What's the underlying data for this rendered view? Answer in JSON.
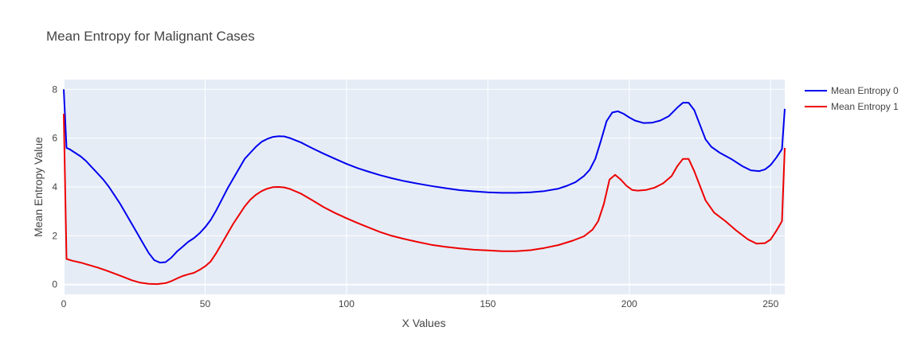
{
  "chart_data": {
    "type": "line",
    "title": "Mean Entropy for Malignant Cases",
    "xlabel": "X Values",
    "ylabel": "Mean Entropy Value",
    "xlim": [
      0,
      255
    ],
    "ylim": [
      -0.4,
      8.4
    ],
    "xticks": [
      0,
      50,
      100,
      150,
      200,
      250
    ],
    "yticks": [
      0,
      2,
      4,
      6,
      8
    ],
    "grid": true,
    "legend_position": "top-right",
    "plot_background": "#e5ecf6",
    "series": [
      {
        "name": "Mean Entropy 0",
        "color": "#0000ee",
        "points": [
          [
            0,
            8.0
          ],
          [
            1,
            5.6
          ],
          [
            2,
            5.55
          ],
          [
            4,
            5.4
          ],
          [
            6,
            5.25
          ],
          [
            8,
            5.05
          ],
          [
            10,
            4.8
          ],
          [
            12,
            4.55
          ],
          [
            14,
            4.3
          ],
          [
            16,
            4.0
          ],
          [
            18,
            3.65
          ],
          [
            20,
            3.3
          ],
          [
            22,
            2.9
          ],
          [
            24,
            2.5
          ],
          [
            26,
            2.1
          ],
          [
            28,
            1.7
          ],
          [
            30,
            1.3
          ],
          [
            32,
            1.0
          ],
          [
            34,
            0.9
          ],
          [
            36,
            0.92
          ],
          [
            38,
            1.1
          ],
          [
            40,
            1.35
          ],
          [
            42,
            1.55
          ],
          [
            44,
            1.75
          ],
          [
            46,
            1.9
          ],
          [
            48,
            2.1
          ],
          [
            50,
            2.35
          ],
          [
            52,
            2.65
          ],
          [
            54,
            3.05
          ],
          [
            56,
            3.5
          ],
          [
            58,
            3.95
          ],
          [
            60,
            4.35
          ],
          [
            62,
            4.75
          ],
          [
            64,
            5.15
          ],
          [
            66,
            5.4
          ],
          [
            68,
            5.65
          ],
          [
            70,
            5.85
          ],
          [
            72,
            5.97
          ],
          [
            74,
            6.05
          ],
          [
            76,
            6.08
          ],
          [
            78,
            6.07
          ],
          [
            80,
            6.0
          ],
          [
            84,
            5.82
          ],
          [
            88,
            5.58
          ],
          [
            92,
            5.36
          ],
          [
            96,
            5.15
          ],
          [
            100,
            4.95
          ],
          [
            104,
            4.77
          ],
          [
            108,
            4.62
          ],
          [
            112,
            4.48
          ],
          [
            116,
            4.36
          ],
          [
            120,
            4.25
          ],
          [
            125,
            4.14
          ],
          [
            130,
            4.04
          ],
          [
            135,
            3.95
          ],
          [
            140,
            3.87
          ],
          [
            145,
            3.82
          ],
          [
            150,
            3.78
          ],
          [
            155,
            3.76
          ],
          [
            160,
            3.76
          ],
          [
            165,
            3.78
          ],
          [
            170,
            3.83
          ],
          [
            175,
            3.93
          ],
          [
            178,
            4.05
          ],
          [
            181,
            4.2
          ],
          [
            184,
            4.45
          ],
          [
            186,
            4.7
          ],
          [
            188,
            5.15
          ],
          [
            190,
            5.9
          ],
          [
            192,
            6.7
          ],
          [
            194,
            7.05
          ],
          [
            196,
            7.1
          ],
          [
            198,
            7.0
          ],
          [
            200,
            6.85
          ],
          [
            202,
            6.72
          ],
          [
            205,
            6.62
          ],
          [
            208,
            6.63
          ],
          [
            211,
            6.72
          ],
          [
            214,
            6.9
          ],
          [
            217,
            7.25
          ],
          [
            219,
            7.45
          ],
          [
            221,
            7.45
          ],
          [
            223,
            7.15
          ],
          [
            225,
            6.55
          ],
          [
            227,
            5.95
          ],
          [
            229,
            5.65
          ],
          [
            232,
            5.4
          ],
          [
            236,
            5.15
          ],
          [
            240,
            4.85
          ],
          [
            243,
            4.68
          ],
          [
            246,
            4.65
          ],
          [
            248,
            4.72
          ],
          [
            250,
            4.9
          ],
          [
            252,
            5.2
          ],
          [
            254,
            5.55
          ],
          [
            255,
            7.2
          ]
        ]
      },
      {
        "name": "Mean Entropy 1",
        "color": "#ee0000",
        "points": [
          [
            0,
            7.0
          ],
          [
            1,
            1.05
          ],
          [
            3,
            0.98
          ],
          [
            6,
            0.9
          ],
          [
            9,
            0.8
          ],
          [
            12,
            0.7
          ],
          [
            15,
            0.58
          ],
          [
            18,
            0.45
          ],
          [
            21,
            0.32
          ],
          [
            24,
            0.18
          ],
          [
            27,
            0.08
          ],
          [
            30,
            0.03
          ],
          [
            33,
            0.02
          ],
          [
            36,
            0.06
          ],
          [
            38,
            0.14
          ],
          [
            40,
            0.25
          ],
          [
            42,
            0.35
          ],
          [
            44,
            0.42
          ],
          [
            46,
            0.48
          ],
          [
            48,
            0.6
          ],
          [
            50,
            0.75
          ],
          [
            52,
            0.95
          ],
          [
            54,
            1.3
          ],
          [
            56,
            1.7
          ],
          [
            58,
            2.1
          ],
          [
            60,
            2.5
          ],
          [
            62,
            2.85
          ],
          [
            64,
            3.2
          ],
          [
            66,
            3.48
          ],
          [
            68,
            3.68
          ],
          [
            70,
            3.83
          ],
          [
            72,
            3.93
          ],
          [
            74,
            3.99
          ],
          [
            76,
            4.0
          ],
          [
            78,
            3.98
          ],
          [
            80,
            3.92
          ],
          [
            84,
            3.72
          ],
          [
            88,
            3.45
          ],
          [
            92,
            3.17
          ],
          [
            96,
            2.93
          ],
          [
            100,
            2.72
          ],
          [
            104,
            2.52
          ],
          [
            108,
            2.33
          ],
          [
            112,
            2.15
          ],
          [
            116,
            2.0
          ],
          [
            120,
            1.88
          ],
          [
            125,
            1.75
          ],
          [
            130,
            1.63
          ],
          [
            135,
            1.55
          ],
          [
            140,
            1.48
          ],
          [
            145,
            1.43
          ],
          [
            150,
            1.4
          ],
          [
            155,
            1.37
          ],
          [
            160,
            1.37
          ],
          [
            165,
            1.41
          ],
          [
            170,
            1.5
          ],
          [
            175,
            1.62
          ],
          [
            180,
            1.8
          ],
          [
            184,
            1.98
          ],
          [
            187,
            2.25
          ],
          [
            189,
            2.6
          ],
          [
            191,
            3.3
          ],
          [
            193,
            4.3
          ],
          [
            195,
            4.5
          ],
          [
            197,
            4.3
          ],
          [
            199,
            4.05
          ],
          [
            201,
            3.88
          ],
          [
            203,
            3.85
          ],
          [
            206,
            3.88
          ],
          [
            209,
            3.97
          ],
          [
            212,
            4.15
          ],
          [
            215,
            4.45
          ],
          [
            217,
            4.85
          ],
          [
            219,
            5.15
          ],
          [
            221,
            5.15
          ],
          [
            223,
            4.65
          ],
          [
            225,
            4.05
          ],
          [
            227,
            3.45
          ],
          [
            230,
            2.95
          ],
          [
            234,
            2.6
          ],
          [
            238,
            2.2
          ],
          [
            242,
            1.85
          ],
          [
            245,
            1.68
          ],
          [
            248,
            1.7
          ],
          [
            250,
            1.85
          ],
          [
            252,
            2.2
          ],
          [
            254,
            2.6
          ],
          [
            255,
            5.6
          ]
        ]
      }
    ]
  }
}
